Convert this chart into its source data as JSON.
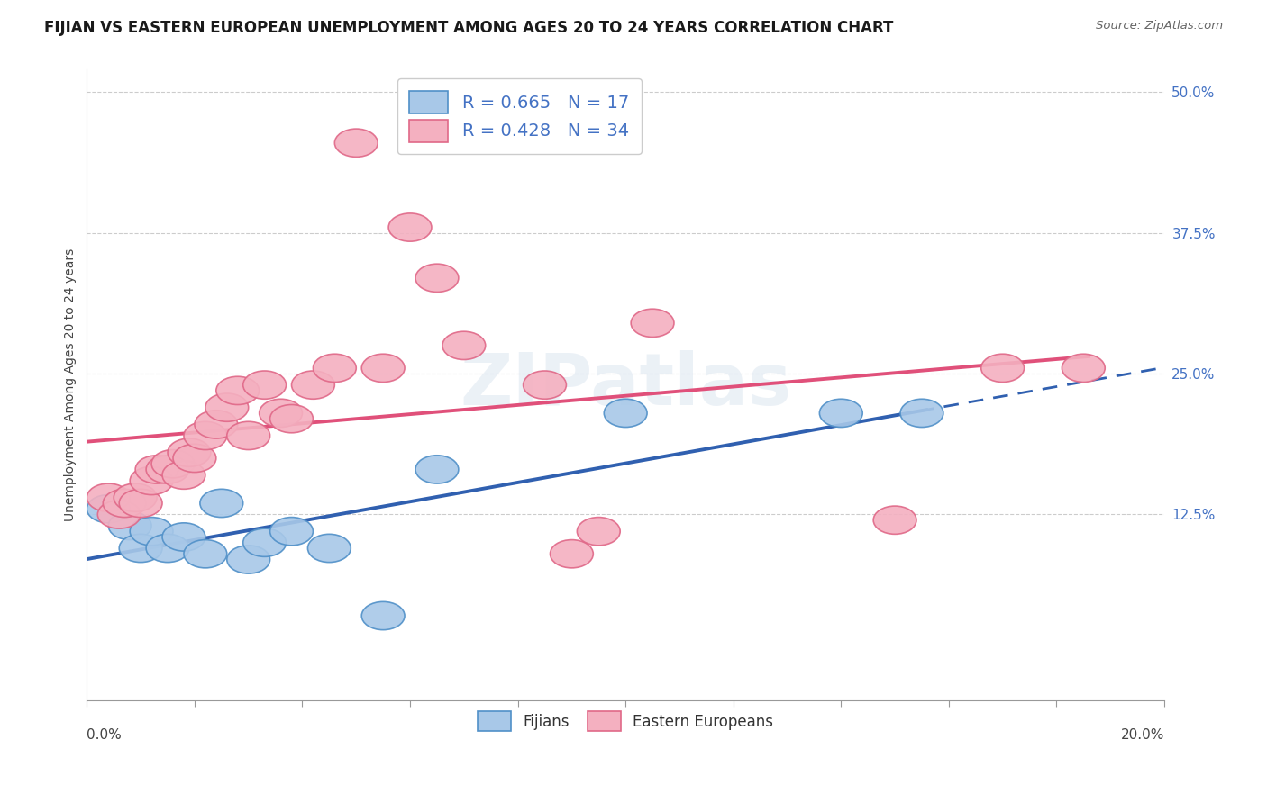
{
  "title": "FIJIAN VS EASTERN EUROPEAN UNEMPLOYMENT AMONG AGES 20 TO 24 YEARS CORRELATION CHART",
  "source": "Source: ZipAtlas.com",
  "ylabel": "Unemployment Among Ages 20 to 24 years",
  "xlim": [
    0.0,
    0.2
  ],
  "ylim": [
    -0.04,
    0.52
  ],
  "yticks": [
    0.125,
    0.25,
    0.375,
    0.5
  ],
  "ytick_labels": [
    "12.5%",
    "25.0%",
    "37.5%",
    "50.0%"
  ],
  "legend_fijians_R": "R = 0.665",
  "legend_fijians_N": "N = 17",
  "legend_eastern_R": "R = 0.428",
  "legend_eastern_N": "N = 34",
  "fijian_color": "#a8c8e8",
  "eastern_color": "#f4b0c0",
  "fijian_edge_color": "#5090c8",
  "eastern_edge_color": "#e06888",
  "fijian_line_color": "#3060b0",
  "eastern_line_color": "#e0507a",
  "background_color": "#ffffff",
  "grid_color": "#cccccc",
  "fijians_x": [
    0.004,
    0.008,
    0.01,
    0.012,
    0.015,
    0.018,
    0.022,
    0.025,
    0.03,
    0.033,
    0.038,
    0.045,
    0.055,
    0.065,
    0.1,
    0.14,
    0.155
  ],
  "fijians_y": [
    0.13,
    0.115,
    0.095,
    0.11,
    0.095,
    0.105,
    0.09,
    0.135,
    0.085,
    0.1,
    0.11,
    0.095,
    0.035,
    0.165,
    0.215,
    0.215,
    0.215
  ],
  "eastern_x": [
    0.004,
    0.006,
    0.007,
    0.009,
    0.01,
    0.012,
    0.013,
    0.015,
    0.016,
    0.018,
    0.019,
    0.02,
    0.022,
    0.024,
    0.026,
    0.028,
    0.03,
    0.033,
    0.036,
    0.038,
    0.042,
    0.046,
    0.05,
    0.055,
    0.06,
    0.065,
    0.07,
    0.085,
    0.09,
    0.095,
    0.105,
    0.15,
    0.17,
    0.185
  ],
  "eastern_y": [
    0.14,
    0.125,
    0.135,
    0.14,
    0.135,
    0.155,
    0.165,
    0.165,
    0.17,
    0.16,
    0.18,
    0.175,
    0.195,
    0.205,
    0.22,
    0.235,
    0.195,
    0.24,
    0.215,
    0.21,
    0.24,
    0.255,
    0.455,
    0.255,
    0.38,
    0.335,
    0.275,
    0.24,
    0.09,
    0.11,
    0.295,
    0.12,
    0.255,
    0.255
  ],
  "watermark_text": "ZIPatlas",
  "title_fontsize": 12,
  "axis_label_fontsize": 10,
  "legend_fontsize": 13,
  "tick_fontsize": 11
}
